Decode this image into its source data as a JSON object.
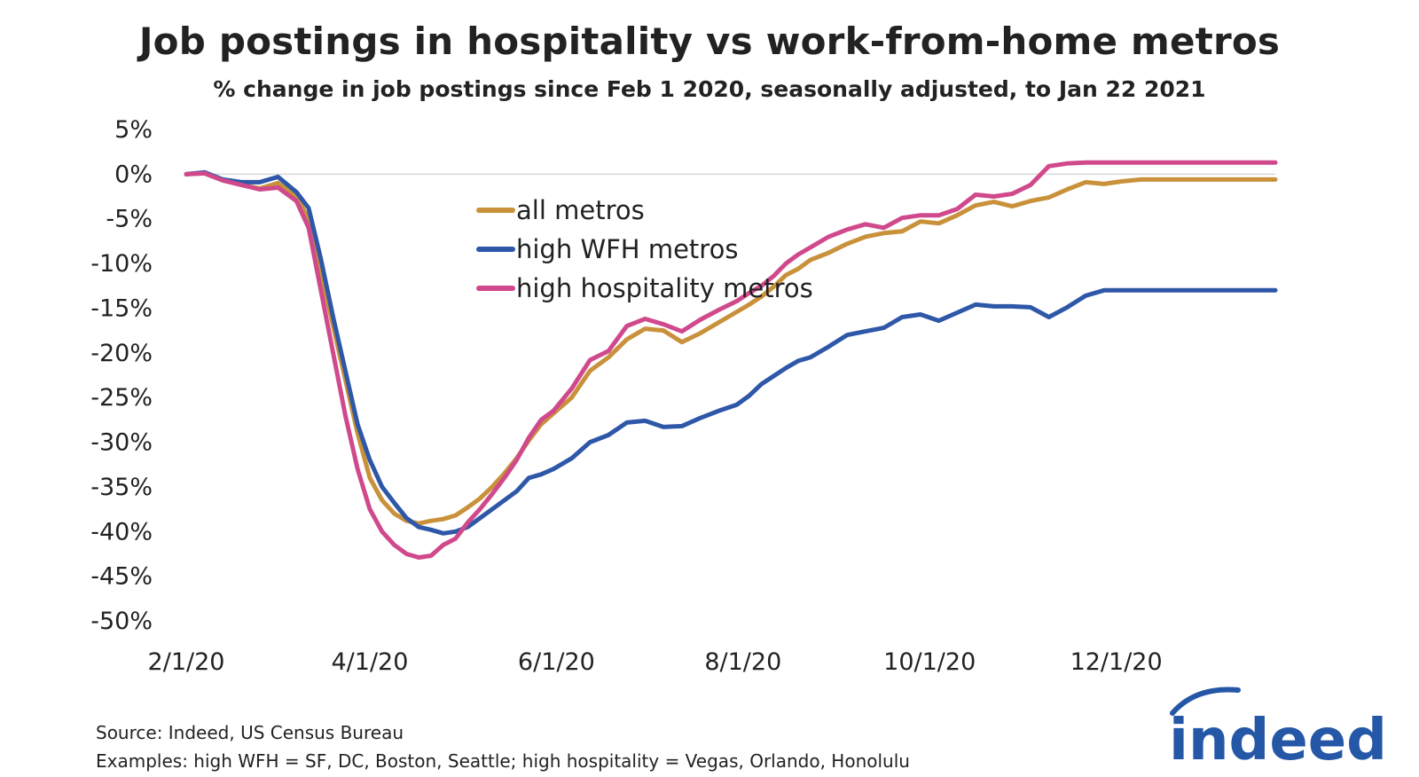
{
  "chart_data": {
    "type": "line",
    "title": "Job postings in hospitality vs work-from-home metros",
    "subtitle": "% change in job postings since Feb 1 2020, seasonally adjusted, to Jan 22 2021",
    "xlabel": "",
    "ylabel": "",
    "ylim": [
      -50,
      5
    ],
    "xlim": [
      0,
      356
    ],
    "y_ticks": [
      5,
      0,
      -5,
      -10,
      -15,
      -20,
      -25,
      -30,
      -35,
      -40,
      -45,
      -50
    ],
    "y_tick_labels": [
      "5%",
      "0%",
      "-5%",
      "-10%",
      "-15%",
      "-20%",
      "-25%",
      "-30%",
      "-35%",
      "-40%",
      "-45%",
      "-50%"
    ],
    "x_ticks": [
      0,
      60,
      121,
      182,
      243,
      304
    ],
    "x_tick_labels": [
      "2/1/20",
      "4/1/20",
      "6/1/20",
      "8/1/20",
      "10/1/20",
      "12/1/20"
    ],
    "legend_position": "upper-center",
    "grid": false,
    "series": [
      {
        "name": "all metros",
        "color": "#c8913a",
        "x": [
          0,
          6,
          12,
          18,
          24,
          30,
          36,
          40,
          44,
          48,
          52,
          56,
          60,
          64,
          68,
          72,
          76,
          80,
          84,
          88,
          92,
          96,
          100,
          104,
          108,
          112,
          116,
          120,
          126,
          132,
          138,
          144,
          150,
          156,
          162,
          168,
          174,
          180,
          184,
          188,
          192,
          196,
          200,
          204,
          210,
          216,
          222,
          228,
          234,
          240,
          246,
          252,
          258,
          264,
          270,
          276,
          282,
          288,
          294,
          300,
          306,
          312,
          318,
          324,
          330,
          336,
          340,
          344,
          348,
          352,
          356
        ],
        "values": [
          0,
          0.1,
          -0.7,
          -1.2,
          -1.6,
          -1.0,
          -2.5,
          -5,
          -11,
          -17,
          -23,
          -29,
          -34,
          -36.5,
          -38,
          -38.8,
          -39.1,
          -38.8,
          -38.6,
          -38.2,
          -37.3,
          -36.3,
          -35,
          -33.5,
          -31.8,
          -29.8,
          -28,
          -26.8,
          -25,
          -22,
          -20.5,
          -18.5,
          -17.3,
          -17.5,
          -18.8,
          -17.8,
          -16.6,
          -15.4,
          -14.6,
          -13.7,
          -12.6,
          -11.3,
          -10.6,
          -9.6,
          -8.8,
          -7.8,
          -7.0,
          -6.6,
          -6.4,
          -5.3,
          -5.5,
          -4.6,
          -3.5,
          -3.1,
          -3.6,
          -3.0,
          -2.6,
          -1.7,
          -0.9,
          -1.1,
          -0.8,
          -0.6,
          -0.6,
          -0.6,
          -0.6,
          -0.6,
          -0.6,
          -0.6,
          -0.6,
          -0.6,
          -0.6
        ]
      },
      {
        "name": "high WFH metros",
        "color": "#2e57a8",
        "x": [
          0,
          6,
          12,
          18,
          24,
          30,
          36,
          40,
          44,
          48,
          52,
          56,
          60,
          64,
          68,
          72,
          76,
          80,
          84,
          88,
          92,
          96,
          100,
          104,
          108,
          112,
          116,
          120,
          126,
          132,
          138,
          144,
          150,
          156,
          162,
          168,
          174,
          180,
          184,
          188,
          192,
          196,
          200,
          204,
          210,
          216,
          222,
          228,
          234,
          240,
          246,
          252,
          258,
          264,
          270,
          276,
          282,
          288,
          294,
          300,
          306,
          312,
          318,
          324,
          330,
          336,
          340,
          344,
          348,
          352,
          356
        ],
        "values": [
          0,
          0.2,
          -0.6,
          -0.9,
          -0.9,
          -0.3,
          -2.0,
          -3.8,
          -9.5,
          -16,
          -22,
          -28,
          -32,
          -35,
          -36.8,
          -38.5,
          -39.5,
          -39.8,
          -40.2,
          -40.0,
          -39.5,
          -38.5,
          -37.5,
          -36.5,
          -35.5,
          -34.0,
          -33.6,
          -33.0,
          -31.8,
          -30.0,
          -29.2,
          -27.8,
          -27.6,
          -28.3,
          -28.2,
          -27.3,
          -26.5,
          -25.8,
          -24.8,
          -23.5,
          -22.6,
          -21.7,
          -20.9,
          -20.5,
          -19.3,
          -18.0,
          -17.6,
          -17.2,
          -16.0,
          -15.7,
          -16.4,
          -15.5,
          -14.6,
          -14.8,
          -14.8,
          -14.9,
          -16.0,
          -14.9,
          -13.6,
          -13.0,
          -13.0,
          -13.0,
          -13.0,
          -13.0,
          -13.0,
          -13.0,
          -13.0,
          -13.0,
          -13.0,
          -13.0,
          -13.0
        ]
      },
      {
        "name": "high hospitality metros",
        "color": "#d0498c",
        "x": [
          0,
          6,
          12,
          18,
          24,
          30,
          36,
          40,
          44,
          48,
          52,
          56,
          60,
          64,
          68,
          72,
          76,
          80,
          84,
          88,
          92,
          96,
          100,
          104,
          108,
          112,
          116,
          120,
          126,
          132,
          138,
          144,
          150,
          156,
          162,
          168,
          174,
          180,
          184,
          188,
          192,
          196,
          200,
          204,
          210,
          216,
          222,
          228,
          234,
          240,
          246,
          252,
          258,
          264,
          270,
          276,
          282,
          288,
          294,
          300,
          306,
          312,
          318,
          324,
          330,
          336,
          340,
          344,
          348,
          352,
          356
        ],
        "values": [
          0,
          0.1,
          -0.7,
          -1.2,
          -1.7,
          -1.5,
          -3.0,
          -6,
          -13,
          -20,
          -27,
          -33,
          -37.5,
          -40,
          -41.5,
          -42.5,
          -42.9,
          -42.7,
          -41.5,
          -40.8,
          -39,
          -37.5,
          -35.8,
          -34,
          -32,
          -29.5,
          -27.5,
          -26.5,
          -24,
          -20.8,
          -19.8,
          -17.0,
          -16.2,
          -16.8,
          -17.6,
          -16.3,
          -15.2,
          -14.2,
          -13.3,
          -12.5,
          -11.4,
          -10.0,
          -9.0,
          -8.2,
          -7.0,
          -6.2,
          -5.6,
          -6.0,
          -4.9,
          -4.6,
          -4.6,
          -3.9,
          -2.3,
          -2.5,
          -2.2,
          -1.2,
          0.9,
          1.2,
          1.3,
          1.3,
          1.3,
          1.3,
          1.3,
          1.3,
          1.3,
          1.3,
          1.3,
          1.3,
          1.3,
          1.3,
          1.3
        ]
      }
    ]
  },
  "footer": {
    "source": "Source: Indeed, US Census Bureau",
    "examples": "Examples: high WFH = SF, DC, Boston, Seattle; high hospitality = Vegas, Orlando, Honolulu"
  },
  "logo": {
    "text": "indeed",
    "color": "#2557a7"
  }
}
